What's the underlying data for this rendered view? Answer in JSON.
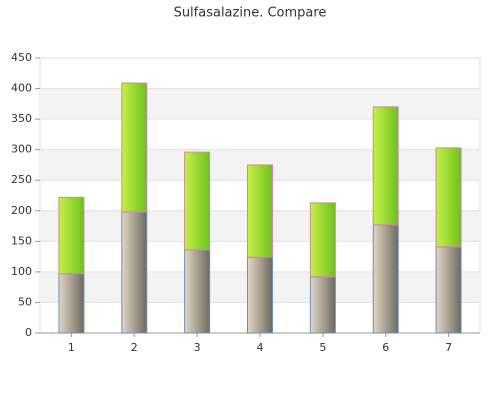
{
  "chart_data": {
    "type": "stacked-bar",
    "title": "Sulfasalazine. Compare",
    "categories": [
      "1",
      "2",
      "3",
      "4",
      "5",
      "6",
      "7"
    ],
    "series": [
      {
        "color": "#7a7468",
        "values": [
          97,
          198,
          136,
          124,
          92,
          177,
          141
        ]
      },
      {
        "color": "#8fd62a",
        "values": [
          125,
          211,
          160,
          151,
          121,
          193,
          162
        ]
      }
    ],
    "ylim": [
      0,
      450
    ],
    "yticks": [
      0,
      50,
      100,
      150,
      200,
      250,
      300,
      350,
      400,
      450
    ],
    "grid": true
  }
}
